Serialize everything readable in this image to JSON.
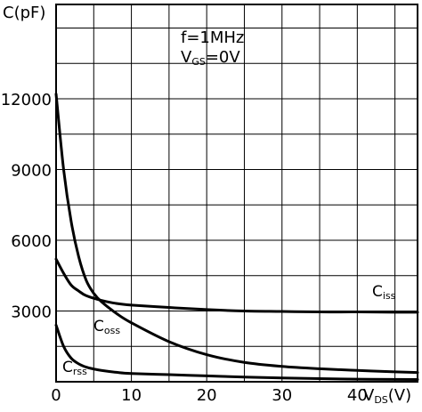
{
  "chart_data": {
    "type": "line",
    "ylabel": "C(pF)",
    "xlabel_main": "V",
    "xlabel_sub": "DS",
    "xlabel_unit": "(V)",
    "xlim": [
      0,
      48
    ],
    "ylim": [
      0,
      16000
    ],
    "x_ticks": [
      0,
      10,
      20,
      30,
      40
    ],
    "y_ticks": [
      3000,
      6000,
      9000,
      12000
    ],
    "x_tick_labels": [
      "0",
      "10",
      "20",
      "30",
      "40"
    ],
    "y_tick_labels": [
      "3000",
      "6000",
      "9000",
      "12000"
    ],
    "grid": true,
    "annotation_line1": "f=1MHz",
    "annotation_line2_main": "V",
    "annotation_line2_sub": "GS",
    "annotation_line2_rest": "=0V",
    "series": [
      {
        "name": "Ciss",
        "label_main": "C",
        "label_sub": "iss",
        "x": [
          0,
          1,
          2,
          3,
          4,
          6,
          8,
          10,
          15,
          20,
          25,
          30,
          35,
          40,
          45,
          48
        ],
        "y": [
          5200,
          4600,
          4100,
          3850,
          3650,
          3450,
          3320,
          3250,
          3150,
          3060,
          3000,
          2980,
          2960,
          2960,
          2950,
          2950
        ]
      },
      {
        "name": "Coss",
        "label_main": "C",
        "label_sub": "oss",
        "x": [
          0,
          1,
          2,
          3,
          4,
          5,
          6,
          8,
          10,
          15,
          20,
          25,
          30,
          35,
          40,
          45,
          48
        ],
        "y": [
          12200,
          9000,
          6800,
          5300,
          4300,
          3750,
          3400,
          2900,
          2500,
          1700,
          1150,
          820,
          650,
          550,
          480,
          420,
          390
        ]
      },
      {
        "name": "Crss",
        "label_main": "C",
        "label_sub": "rss",
        "x": [
          0,
          1,
          2,
          3,
          4,
          5,
          6,
          8,
          10,
          15,
          20,
          25,
          30,
          35,
          40,
          45,
          48
        ],
        "y": [
          2400,
          1500,
          1000,
          760,
          620,
          540,
          480,
          400,
          350,
          300,
          250,
          200,
          160,
          130,
          110,
          100,
          95
        ]
      }
    ]
  }
}
